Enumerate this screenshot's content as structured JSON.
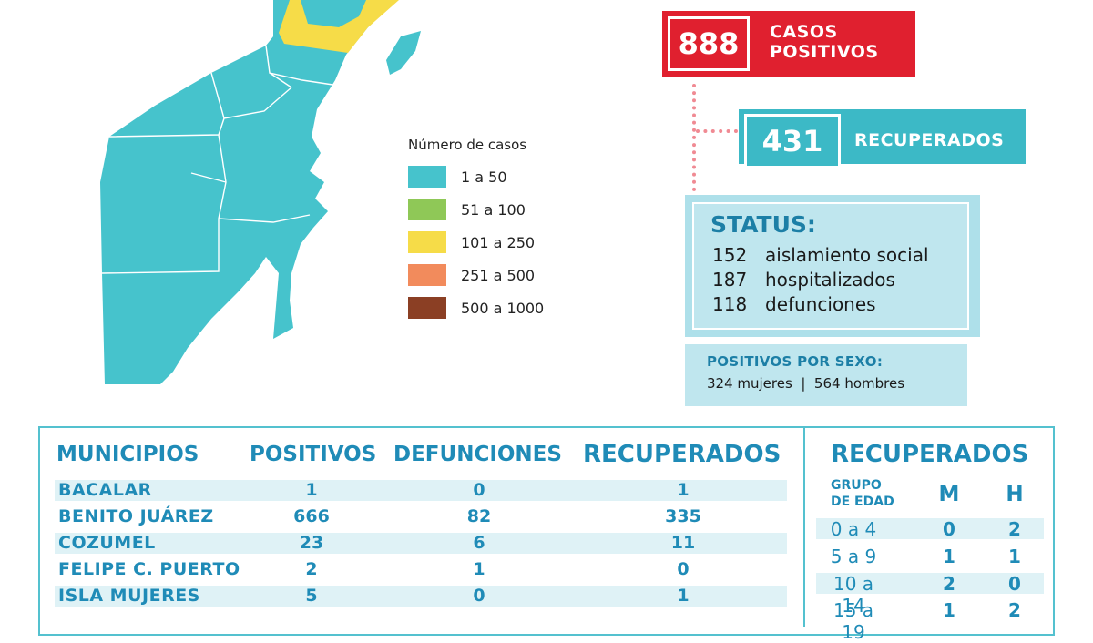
{
  "legend": {
    "title": "Número de casos",
    "items": [
      {
        "label": "1 a 50",
        "color": "#46c3cc"
      },
      {
        "label": "51 a 100",
        "color": "#8fc857"
      },
      {
        "label": "101 a 250",
        "color": "#f6dc48"
      },
      {
        "label": "251 a 500",
        "color": "#f28b5c"
      },
      {
        "label": "500 a 1000",
        "color": "#8b3f24"
      }
    ]
  },
  "casos": {
    "number": "888",
    "label_line1": "CASOS",
    "label_line2": "POSITIVOS",
    "color": "#e0202f"
  },
  "recuperados": {
    "number": "431",
    "label": "RECUPERADOS",
    "color": "#3cb9c6"
  },
  "status": {
    "title": "STATUS:",
    "rows": [
      {
        "n": "152",
        "label": "aislamiento social"
      },
      {
        "n": "187",
        "label": "hospitalizados"
      },
      {
        "n": "118",
        "label": "defunciones"
      }
    ]
  },
  "sexo": {
    "title": "POSITIVOS POR SEXO:",
    "text": "324 mujeres  |  564 hombres"
  },
  "table": {
    "headers": {
      "municipios": "MUNICIPIOS",
      "positivos": "POSITIVOS",
      "defunciones": "DEFUNCIONES",
      "recuperados": "RECUPERADOS"
    },
    "rows": [
      {
        "municipio": "BACALAR",
        "positivos": "1",
        "defunciones": "0",
        "recuperados": "1"
      },
      {
        "municipio": "BENITO JUÁREZ",
        "positivos": "666",
        "defunciones": "82",
        "recuperados": "335"
      },
      {
        "municipio": "COZUMEL",
        "positivos": "23",
        "defunciones": "6",
        "recuperados": "11"
      },
      {
        "municipio": "FELIPE C. PUERTO",
        "positivos": "2",
        "defunciones": "1",
        "recuperados": "0"
      },
      {
        "municipio": "ISLA MUJERES",
        "positivos": "5",
        "defunciones": "0",
        "recuperados": "1"
      }
    ]
  },
  "age_table": {
    "title": "RECUPERADOS",
    "grupo_line1": "GRUPO",
    "grupo_line2": "DE EDAD",
    "col_m": "M",
    "col_h": "H",
    "rows": [
      {
        "grupo": "0 a 4",
        "m": "0",
        "h": "2"
      },
      {
        "grupo": "5 a 9",
        "m": "1",
        "h": "1"
      },
      {
        "grupo": "10 a 14",
        "m": "2",
        "h": "0"
      },
      {
        "grupo": "15 a 19",
        "m": "1",
        "h": "2"
      }
    ]
  }
}
